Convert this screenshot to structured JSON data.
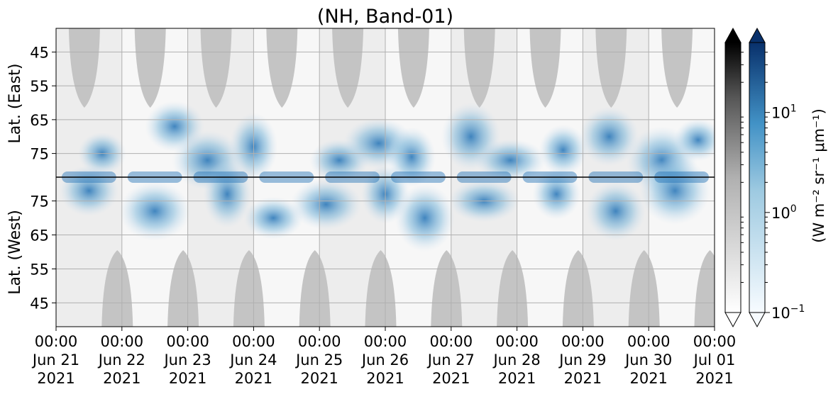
{
  "chart_data": {
    "type": "heatmap",
    "title": "(NH, Band-01)",
    "x_ticks": [
      {
        "time": "2021-06-21T00:00",
        "lines": [
          "00:00",
          "Jun 21",
          "2021"
        ]
      },
      {
        "time": "2021-06-22T00:00",
        "lines": [
          "00:00",
          "Jun 22",
          "2021"
        ]
      },
      {
        "time": "2021-06-23T00:00",
        "lines": [
          "00:00",
          "Jun 23",
          "2021"
        ]
      },
      {
        "time": "2021-06-24T00:00",
        "lines": [
          "00:00",
          "Jun 24",
          "2021"
        ]
      },
      {
        "time": "2021-06-25T00:00",
        "lines": [
          "00:00",
          "Jun 25",
          "2021"
        ]
      },
      {
        "time": "2021-06-26T00:00",
        "lines": [
          "00:00",
          "Jun 26",
          "2021"
        ]
      },
      {
        "time": "2021-06-27T00:00",
        "lines": [
          "00:00",
          "Jun 27",
          "2021"
        ]
      },
      {
        "time": "2021-06-28T00:00",
        "lines": [
          "00:00",
          "Jun 28",
          "2021"
        ]
      },
      {
        "time": "2021-06-29T00:00",
        "lines": [
          "00:00",
          "Jun 29",
          "2021"
        ]
      },
      {
        "time": "2021-06-30T00:00",
        "lines": [
          "00:00",
          "Jun 30",
          "2021"
        ]
      },
      {
        "time": "2021-07-01T00:00",
        "lines": [
          "00:00",
          "Jul 01",
          "2021"
        ]
      }
    ],
    "xlim": [
      "2021-06-21T00:00",
      "2021-07-01T00:00"
    ],
    "panels": [
      {
        "name": "east",
        "ylabel": "Lat. (East)",
        "lat_range": [
          38,
          82
        ],
        "ticks": [
          45,
          55,
          65,
          75
        ],
        "orientation": "increasing-down"
      },
      {
        "name": "west",
        "ylabel": "Lat. (West)",
        "lat_range": [
          38,
          82
        ],
        "ticks": [
          75,
          65,
          55,
          45
        ],
        "orientation": "increasing-up"
      }
    ],
    "grid": true,
    "colorbar": {
      "label": "(W m⁻² sr⁻¹ μm⁻¹)",
      "scale": "log",
      "range": [
        0.1,
        50
      ],
      "ticks": [
        {
          "value": 10,
          "base": "10",
          "exp": "1"
        },
        {
          "value": 1,
          "base": "10",
          "exp": "0"
        },
        {
          "value": 0.1,
          "base": "10",
          "exp": "−1"
        }
      ],
      "cmaps": [
        "Greys",
        "Blues"
      ],
      "extend": "both"
    },
    "colors": {
      "dark_blue": "#08306b",
      "mid_blue": "#2171b5",
      "light_blue": "#c6dbef",
      "grey": "#bdbdbd",
      "grid": "#b0b0b0"
    }
  }
}
